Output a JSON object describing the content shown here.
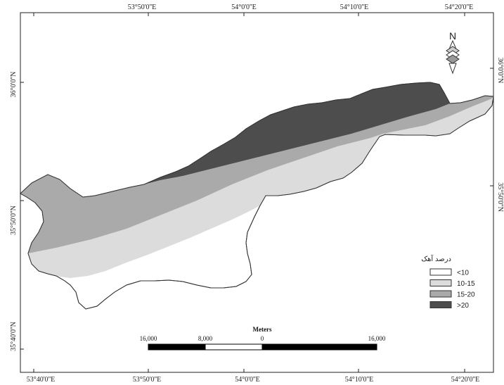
{
  "colors": {
    "lt10": "#ffffff",
    "c10_15": "#dcdcdc",
    "c15_20": "#aaaaaa",
    "gt20": "#4d4d4d",
    "outline": "#333333"
  },
  "axes": {
    "top_ticks": [
      "53°40'0''E",
      "53°50'0''E",
      "54°0'0''E",
      "54°10'0''E",
      "54°20'0''E"
    ],
    "bottom_ticks": [
      "53°40'0''E",
      "53°50'0''E",
      "54°0'0''E",
      "54°10'0''E",
      "54°20'0''E"
    ],
    "left_ticks": [
      "36°0'0''N",
      "35°50'0''N",
      "35°40'0''N"
    ],
    "right_ticks": [
      "36°0'0''N",
      "35°50'0''N"
    ]
  },
  "north_arrow": {
    "label": "N",
    "icon": "north-arrow-icon"
  },
  "legend": {
    "title": "درصد آهک",
    "items": [
      {
        "label": "<10",
        "color": "#ffffff"
      },
      {
        "label": "10-15",
        "color": "#dcdcdc"
      },
      {
        "label": "15-20",
        "color": "#aaaaaa"
      },
      {
        "label": ">20",
        "color": "#4d4d4d"
      }
    ]
  },
  "scale_bar": {
    "title": "Meters",
    "labels": [
      "16,000",
      "8,000",
      "0",
      "16,000"
    ]
  }
}
